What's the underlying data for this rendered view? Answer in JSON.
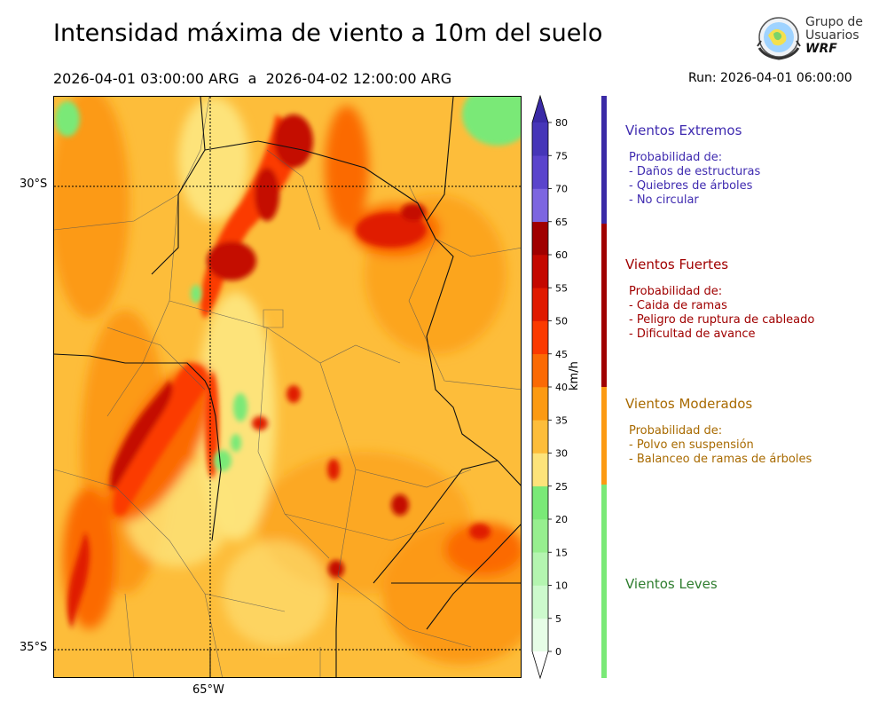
{
  "header": {
    "title": "Intensidad máxima de viento a 10m del suelo",
    "period": "2026-04-01 03:00:00 ARG  a  2026-04-02 12:00:00 ARG",
    "run": "Run: 2026-04-01 06:00:00"
  },
  "logo": {
    "line1": "Grupo de",
    "line2": "Usuarios",
    "line3": "WRF",
    "icon": "globe-logo-icon"
  },
  "map": {
    "lat_labels": [
      "30°S",
      "35°S"
    ],
    "lon_labels": [
      "65°W"
    ]
  },
  "colorbar": {
    "unit": "km/h",
    "ticks": [
      "0",
      "5",
      "10",
      "15",
      "20",
      "25",
      "30",
      "35",
      "40",
      "45",
      "50",
      "55",
      "60",
      "65",
      "70",
      "75",
      "80"
    ],
    "colors": [
      "#e6fde6",
      "#cdfacd",
      "#b4f5b0",
      "#97ef8f",
      "#7ae977",
      "#fde37a",
      "#fdbd3a",
      "#fc9a12",
      "#fb6a04",
      "#fb3a00",
      "#e01a00",
      "#c40800",
      "#a00000",
      "#7d66e0",
      "#5a44cc",
      "#4636b8"
    ],
    "over_color": "#3a2aa6"
  },
  "legend": [
    {
      "title": "Vientos Extremos",
      "color": "#3f2bb0",
      "bar_color": "#3a2aa6",
      "lines": [
        "Probabilidad de:",
        "- Daños de estructuras",
        "- Quiebres de árboles",
        "- No circular"
      ]
    },
    {
      "title": "Vientos Fuertes",
      "color": "#a00000",
      "bar_color": "#a00000",
      "lines": [
        "Probabilidad de:",
        "- Caida de ramas",
        "- Peligro de ruptura de cableado",
        "- Dificultad de avance"
      ]
    },
    {
      "title": "Vientos Moderados",
      "color": "#a86a00",
      "bar_color": "#fc9a12",
      "lines": [
        "Probabilidad de:",
        "- Polvo en suspensión",
        "- Balanceo de ramas de árboles"
      ]
    },
    {
      "title": "Vientos Leves",
      "color": "#2e7d2e",
      "bar_color": "#7ae977",
      "lines": []
    }
  ]
}
